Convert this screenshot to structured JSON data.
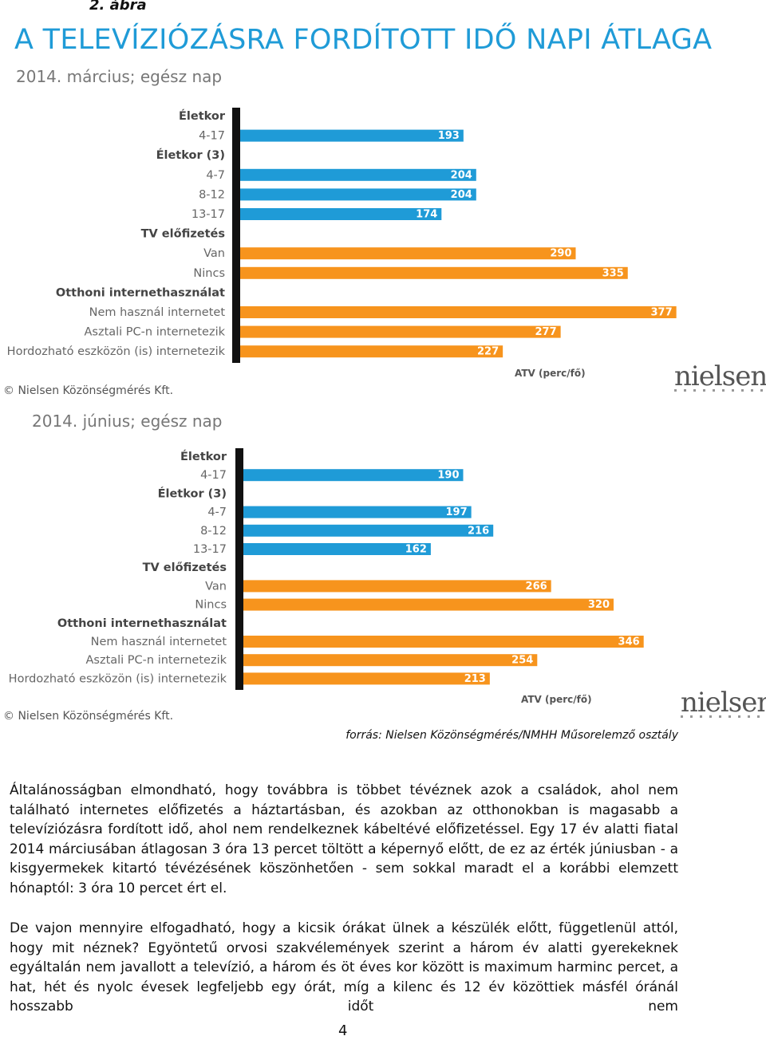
{
  "figure_label": "2. ábra",
  "chart_data": [
    {
      "type": "bar",
      "orientation": "horizontal",
      "title": "A TELEVÍZIÓZÁSRA FORDÍTOTT IDŐ NAPI ÁTLAGA",
      "subtitle": "2014. március; egész nap",
      "categories": [
        "Életkor",
        "4-17",
        "Életkor (3)",
        "4-7",
        "8-12",
        "13-17",
        "TV előfizetés",
        "Van",
        "Nincs",
        "Otthoni internethasználat",
        "Nem használ internetet",
        "Asztali PC-n internetezik",
        "Hordozható eszközön (is) internetezik"
      ],
      "values": [
        null,
        193,
        null,
        204,
        204,
        174,
        null,
        290,
        335,
        null,
        377,
        277,
        227
      ],
      "colors": [
        null,
        "#1f9bd7",
        null,
        "#1f9bd7",
        "#1f9bd7",
        "#1f9bd7",
        null,
        "#f7941d",
        "#f7941d",
        null,
        "#f7941d",
        "#f7941d",
        "#f7941d"
      ],
      "x_label": "ATV (perc/fő)",
      "copyright": "© Nielsen Közönségmérés Kft.",
      "logo": "nielsen"
    },
    {
      "type": "bar",
      "orientation": "horizontal",
      "subtitle": "2014. június; egész nap",
      "categories": [
        "Életkor",
        "4-17",
        "Életkor (3)",
        "4-7",
        "8-12",
        "13-17",
        "TV előfizetés",
        "Van",
        "Nincs",
        "Otthoni internethasználat",
        "Nem használ internetet",
        "Asztali PC-n internetezik",
        "Hordozható eszközön (is) internetezik"
      ],
      "values": [
        null,
        190,
        null,
        197,
        216,
        162,
        null,
        266,
        320,
        null,
        346,
        254,
        213
      ],
      "colors": [
        null,
        "#1f9bd7",
        null,
        "#1f9bd7",
        "#1f9bd7",
        "#1f9bd7",
        null,
        "#f7941d",
        "#f7941d",
        null,
        "#f7941d",
        "#f7941d",
        "#f7941d"
      ],
      "x_label": "ATV (perc/fő)",
      "copyright": "© Nielsen Közönségmérés Kft.",
      "logo": "nielsen"
    }
  ],
  "source": "forrás: Nielsen Közönségmérés/NMHH Műsorelemző osztály",
  "paragraphs": [
    "Általánosságban elmondható, hogy továbbra is többet tévéznek azok a családok, ahol nem található internetes előfizetés a háztartásban, és azokban az otthonokban is magasabb a televíziózásra fordított idő, ahol nem rendelkeznek kábeltévé előfizetéssel. Egy 17 év alatti fiatal 2014 márciusában átlagosan 3 óra 13 percet töltött a képernyő előtt, de ez az érték júniusban - a kisgyermekek kitartó tévézésének köszönhetően - sem sokkal maradt el a korábbi elemzett hónaptól: 3 óra 10 percet ért el.",
    "De vajon mennyire elfogadható, hogy a kicsik órákat ülnek a készülék előtt, függetlenül attól, hogy mit néznek? Egyöntetű orvosi szakvélemények szerint a három év alatti gyerekeknek egyáltalán nem javallott a televízió, a három és öt éves kor között is maximum harminc percet, a hat, hét és nyolc évesek legfeljebb egy órát, míg a kilenc és 12 év közöttiek másfél óránál hosszabb időt nem"
  ],
  "page_number": "4"
}
